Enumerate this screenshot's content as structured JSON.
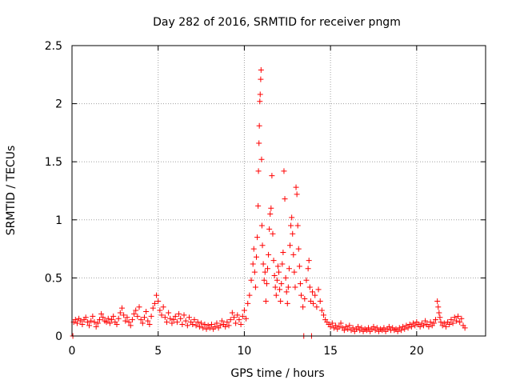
{
  "chart_data": {
    "type": "scatter",
    "title": "Day 282 of 2016, SRMTID for receiver pngm",
    "xlabel": "GPS time / hours",
    "ylabel": "SRMTID / TECUs",
    "xlim": [
      0,
      24
    ],
    "ylim": [
      0,
      2.5
    ],
    "x_ticks": [
      0,
      5,
      10,
      15,
      20
    ],
    "x_tick_labels": [
      "0",
      "5",
      "10",
      "15",
      "20"
    ],
    "y_ticks": [
      0,
      0.5,
      1,
      1.5,
      2,
      2.5
    ],
    "y_tick_labels": [
      "0",
      "0.5",
      "1",
      "1.5",
      "2",
      "2.5"
    ],
    "grid": true,
    "marker": "+",
    "series_color": "#ff0000",
    "series": [
      {
        "name": "SRMTID",
        "points": [
          [
            0.05,
            0.0
          ],
          [
            0.1,
            0.12
          ],
          [
            0.2,
            0.14
          ],
          [
            0.3,
            0.11
          ],
          [
            0.4,
            0.15
          ],
          [
            0.5,
            0.13
          ],
          [
            0.6,
            0.1
          ],
          [
            0.7,
            0.14
          ],
          [
            0.8,
            0.16
          ],
          [
            0.9,
            0.12
          ],
          [
            1.0,
            0.09
          ],
          [
            1.1,
            0.13
          ],
          [
            1.2,
            0.17
          ],
          [
            1.3,
            0.12
          ],
          [
            1.4,
            0.08
          ],
          [
            1.5,
            0.11
          ],
          [
            1.6,
            0.14
          ],
          [
            1.7,
            0.19
          ],
          [
            1.8,
            0.16
          ],
          [
            1.9,
            0.13
          ],
          [
            2.0,
            0.12
          ],
          [
            2.1,
            0.15
          ],
          [
            2.2,
            0.11
          ],
          [
            2.3,
            0.14
          ],
          [
            2.4,
            0.17
          ],
          [
            2.5,
            0.12
          ],
          [
            2.6,
            0.1
          ],
          [
            2.7,
            0.15
          ],
          [
            2.8,
            0.2
          ],
          [
            2.9,
            0.24
          ],
          [
            3.0,
            0.18
          ],
          [
            3.1,
            0.13
          ],
          [
            3.2,
            0.16
          ],
          [
            3.3,
            0.12
          ],
          [
            3.4,
            0.09
          ],
          [
            3.5,
            0.14
          ],
          [
            3.6,
            0.19
          ],
          [
            3.7,
            0.22
          ],
          [
            3.8,
            0.17
          ],
          [
            3.9,
            0.25
          ],
          [
            4.0,
            0.14
          ],
          [
            4.1,
            0.11
          ],
          [
            4.2,
            0.16
          ],
          [
            4.3,
            0.21
          ],
          [
            4.4,
            0.13
          ],
          [
            4.5,
            0.1
          ],
          [
            4.6,
            0.17
          ],
          [
            4.7,
            0.24
          ],
          [
            4.8,
            0.28
          ],
          [
            4.9,
            0.35
          ],
          [
            5.0,
            0.3
          ],
          [
            5.1,
            0.22
          ],
          [
            5.2,
            0.18
          ],
          [
            5.3,
            0.25
          ],
          [
            5.4,
            0.16
          ],
          [
            5.5,
            0.12
          ],
          [
            5.6,
            0.2
          ],
          [
            5.7,
            0.15
          ],
          [
            5.8,
            0.11
          ],
          [
            5.9,
            0.14
          ],
          [
            6.0,
            0.17
          ],
          [
            6.1,
            0.12
          ],
          [
            6.2,
            0.19
          ],
          [
            6.3,
            0.15
          ],
          [
            6.4,
            0.1
          ],
          [
            6.5,
            0.18
          ],
          [
            6.6,
            0.13
          ],
          [
            6.7,
            0.09
          ],
          [
            6.8,
            0.16
          ],
          [
            6.9,
            0.12
          ],
          [
            7.0,
            0.1
          ],
          [
            7.1,
            0.14
          ],
          [
            7.2,
            0.09
          ],
          [
            7.3,
            0.12
          ],
          [
            7.4,
            0.08
          ],
          [
            7.5,
            0.11
          ],
          [
            7.6,
            0.07
          ],
          [
            7.7,
            0.1
          ],
          [
            7.8,
            0.06
          ],
          [
            7.9,
            0.09
          ],
          [
            8.0,
            0.07
          ],
          [
            8.1,
            0.1
          ],
          [
            8.2,
            0.06
          ],
          [
            8.3,
            0.08
          ],
          [
            8.4,
            0.11
          ],
          [
            8.5,
            0.07
          ],
          [
            8.6,
            0.09
          ],
          [
            8.7,
            0.13
          ],
          [
            8.8,
            0.1
          ],
          [
            8.9,
            0.08
          ],
          [
            9.0,
            0.12
          ],
          [
            9.1,
            0.09
          ],
          [
            9.2,
            0.14
          ],
          [
            9.3,
            0.2
          ],
          [
            9.4,
            0.16
          ],
          [
            9.5,
            0.11
          ],
          [
            9.6,
            0.18
          ],
          [
            9.7,
            0.14
          ],
          [
            9.8,
            0.1
          ],
          [
            9.9,
            0.17
          ],
          [
            10.0,
            0.22
          ],
          [
            10.1,
            0.15
          ],
          [
            10.2,
            0.28
          ],
          [
            10.3,
            0.35
          ],
          [
            10.4,
            0.48
          ],
          [
            10.5,
            0.62
          ],
          [
            10.55,
            0.75
          ],
          [
            10.6,
            0.55
          ],
          [
            10.65,
            0.42
          ],
          [
            10.7,
            0.68
          ],
          [
            10.75,
            0.85
          ],
          [
            10.8,
            1.12
          ],
          [
            10.82,
            1.42
          ],
          [
            10.85,
            1.66
          ],
          [
            10.87,
            1.81
          ],
          [
            10.9,
            2.02
          ],
          [
            10.92,
            2.08
          ],
          [
            10.95,
            2.21
          ],
          [
            10.97,
            2.29
          ],
          [
            11.0,
            1.52
          ],
          [
            11.02,
            0.95
          ],
          [
            11.05,
            0.78
          ],
          [
            11.1,
            0.62
          ],
          [
            11.15,
            0.48
          ],
          [
            11.2,
            0.55
          ],
          [
            11.25,
            0.3
          ],
          [
            11.3,
            0.45
          ],
          [
            11.35,
            0.58
          ],
          [
            11.4,
            0.7
          ],
          [
            11.45,
            0.92
          ],
          [
            11.5,
            1.05
          ],
          [
            11.55,
            1.1
          ],
          [
            11.6,
            1.38
          ],
          [
            11.65,
            0.88
          ],
          [
            11.7,
            0.65
          ],
          [
            11.75,
            0.52
          ],
          [
            11.8,
            0.42
          ],
          [
            11.85,
            0.35
          ],
          [
            11.9,
            0.48
          ],
          [
            11.95,
            0.6
          ],
          [
            12.0,
            0.55
          ],
          [
            12.05,
            0.4
          ],
          [
            12.1,
            0.3
          ],
          [
            12.15,
            0.45
          ],
          [
            12.2,
            0.62
          ],
          [
            12.25,
            0.72
          ],
          [
            12.3,
            1.42
          ],
          [
            12.35,
            1.18
          ],
          [
            12.4,
            0.5
          ],
          [
            12.45,
            0.38
          ],
          [
            12.5,
            0.28
          ],
          [
            12.55,
            0.42
          ],
          [
            12.6,
            0.58
          ],
          [
            12.65,
            0.78
          ],
          [
            12.7,
            0.95
          ],
          [
            12.75,
            1.02
          ],
          [
            12.8,
            0.88
          ],
          [
            12.85,
            0.7
          ],
          [
            12.9,
            0.55
          ],
          [
            12.95,
            0.42
          ],
          [
            13.0,
            1.28
          ],
          [
            13.05,
            1.22
          ],
          [
            13.1,
            0.95
          ],
          [
            13.15,
            0.75
          ],
          [
            13.2,
            0.6
          ],
          [
            13.25,
            0.45
          ],
          [
            13.3,
            0.35
          ],
          [
            13.4,
            0.25
          ],
          [
            13.45,
            0.0
          ],
          [
            13.5,
            0.32
          ],
          [
            13.6,
            0.48
          ],
          [
            13.7,
            0.58
          ],
          [
            13.75,
            0.65
          ],
          [
            13.8,
            0.42
          ],
          [
            13.85,
            0.3
          ],
          [
            13.9,
            0.0
          ],
          [
            13.95,
            0.38
          ],
          [
            14.0,
            0.28
          ],
          [
            14.1,
            0.35
          ],
          [
            14.2,
            0.25
          ],
          [
            14.3,
            0.4
          ],
          [
            14.4,
            0.3
          ],
          [
            14.5,
            0.22
          ],
          [
            14.6,
            0.18
          ],
          [
            14.7,
            0.14
          ],
          [
            14.8,
            0.12
          ],
          [
            14.9,
            0.1
          ],
          [
            15.0,
            0.08
          ],
          [
            15.1,
            0.11
          ],
          [
            15.2,
            0.07
          ],
          [
            15.3,
            0.09
          ],
          [
            15.4,
            0.06
          ],
          [
            15.5,
            0.08
          ],
          [
            15.6,
            0.11
          ],
          [
            15.7,
            0.07
          ],
          [
            15.8,
            0.05
          ],
          [
            15.9,
            0.08
          ],
          [
            16.0,
            0.06
          ],
          [
            16.1,
            0.09
          ],
          [
            16.2,
            0.05
          ],
          [
            16.3,
            0.07
          ],
          [
            16.4,
            0.04
          ],
          [
            16.5,
            0.06
          ],
          [
            16.6,
            0.08
          ],
          [
            16.7,
            0.05
          ],
          [
            16.8,
            0.07
          ],
          [
            16.9,
            0.04
          ],
          [
            17.0,
            0.06
          ],
          [
            17.1,
            0.05
          ],
          [
            17.2,
            0.07
          ],
          [
            17.3,
            0.04
          ],
          [
            17.4,
            0.06
          ],
          [
            17.5,
            0.08
          ],
          [
            17.6,
            0.05
          ],
          [
            17.7,
            0.07
          ],
          [
            17.8,
            0.04
          ],
          [
            17.9,
            0.06
          ],
          [
            18.0,
            0.05
          ],
          [
            18.1,
            0.07
          ],
          [
            18.2,
            0.04
          ],
          [
            18.3,
            0.06
          ],
          [
            18.4,
            0.08
          ],
          [
            18.5,
            0.05
          ],
          [
            18.6,
            0.07
          ],
          [
            18.7,
            0.05
          ],
          [
            18.8,
            0.06
          ],
          [
            18.9,
            0.04
          ],
          [
            19.0,
            0.07
          ],
          [
            19.1,
            0.05
          ],
          [
            19.2,
            0.08
          ],
          [
            19.3,
            0.06
          ],
          [
            19.4,
            0.09
          ],
          [
            19.5,
            0.07
          ],
          [
            19.6,
            0.1
          ],
          [
            19.7,
            0.08
          ],
          [
            19.8,
            0.11
          ],
          [
            19.9,
            0.09
          ],
          [
            20.0,
            0.12
          ],
          [
            20.1,
            0.1
          ],
          [
            20.2,
            0.08
          ],
          [
            20.3,
            0.11
          ],
          [
            20.4,
            0.09
          ],
          [
            20.5,
            0.13
          ],
          [
            20.6,
            0.1
          ],
          [
            20.7,
            0.08
          ],
          [
            20.8,
            0.12
          ],
          [
            20.9,
            0.09
          ],
          [
            21.0,
            0.11
          ],
          [
            21.1,
            0.14
          ],
          [
            21.2,
            0.3
          ],
          [
            21.25,
            0.25
          ],
          [
            21.3,
            0.2
          ],
          [
            21.35,
            0.16
          ],
          [
            21.4,
            0.12
          ],
          [
            21.5,
            0.09
          ],
          [
            21.6,
            0.11
          ],
          [
            21.7,
            0.08
          ],
          [
            21.8,
            0.12
          ],
          [
            21.9,
            0.1
          ],
          [
            22.0,
            0.14
          ],
          [
            22.1,
            0.11
          ],
          [
            22.2,
            0.16
          ],
          [
            22.3,
            0.13
          ],
          [
            22.4,
            0.17
          ],
          [
            22.5,
            0.12
          ],
          [
            22.6,
            0.15
          ],
          [
            22.7,
            0.09
          ],
          [
            22.8,
            0.07
          ]
        ]
      }
    ]
  }
}
